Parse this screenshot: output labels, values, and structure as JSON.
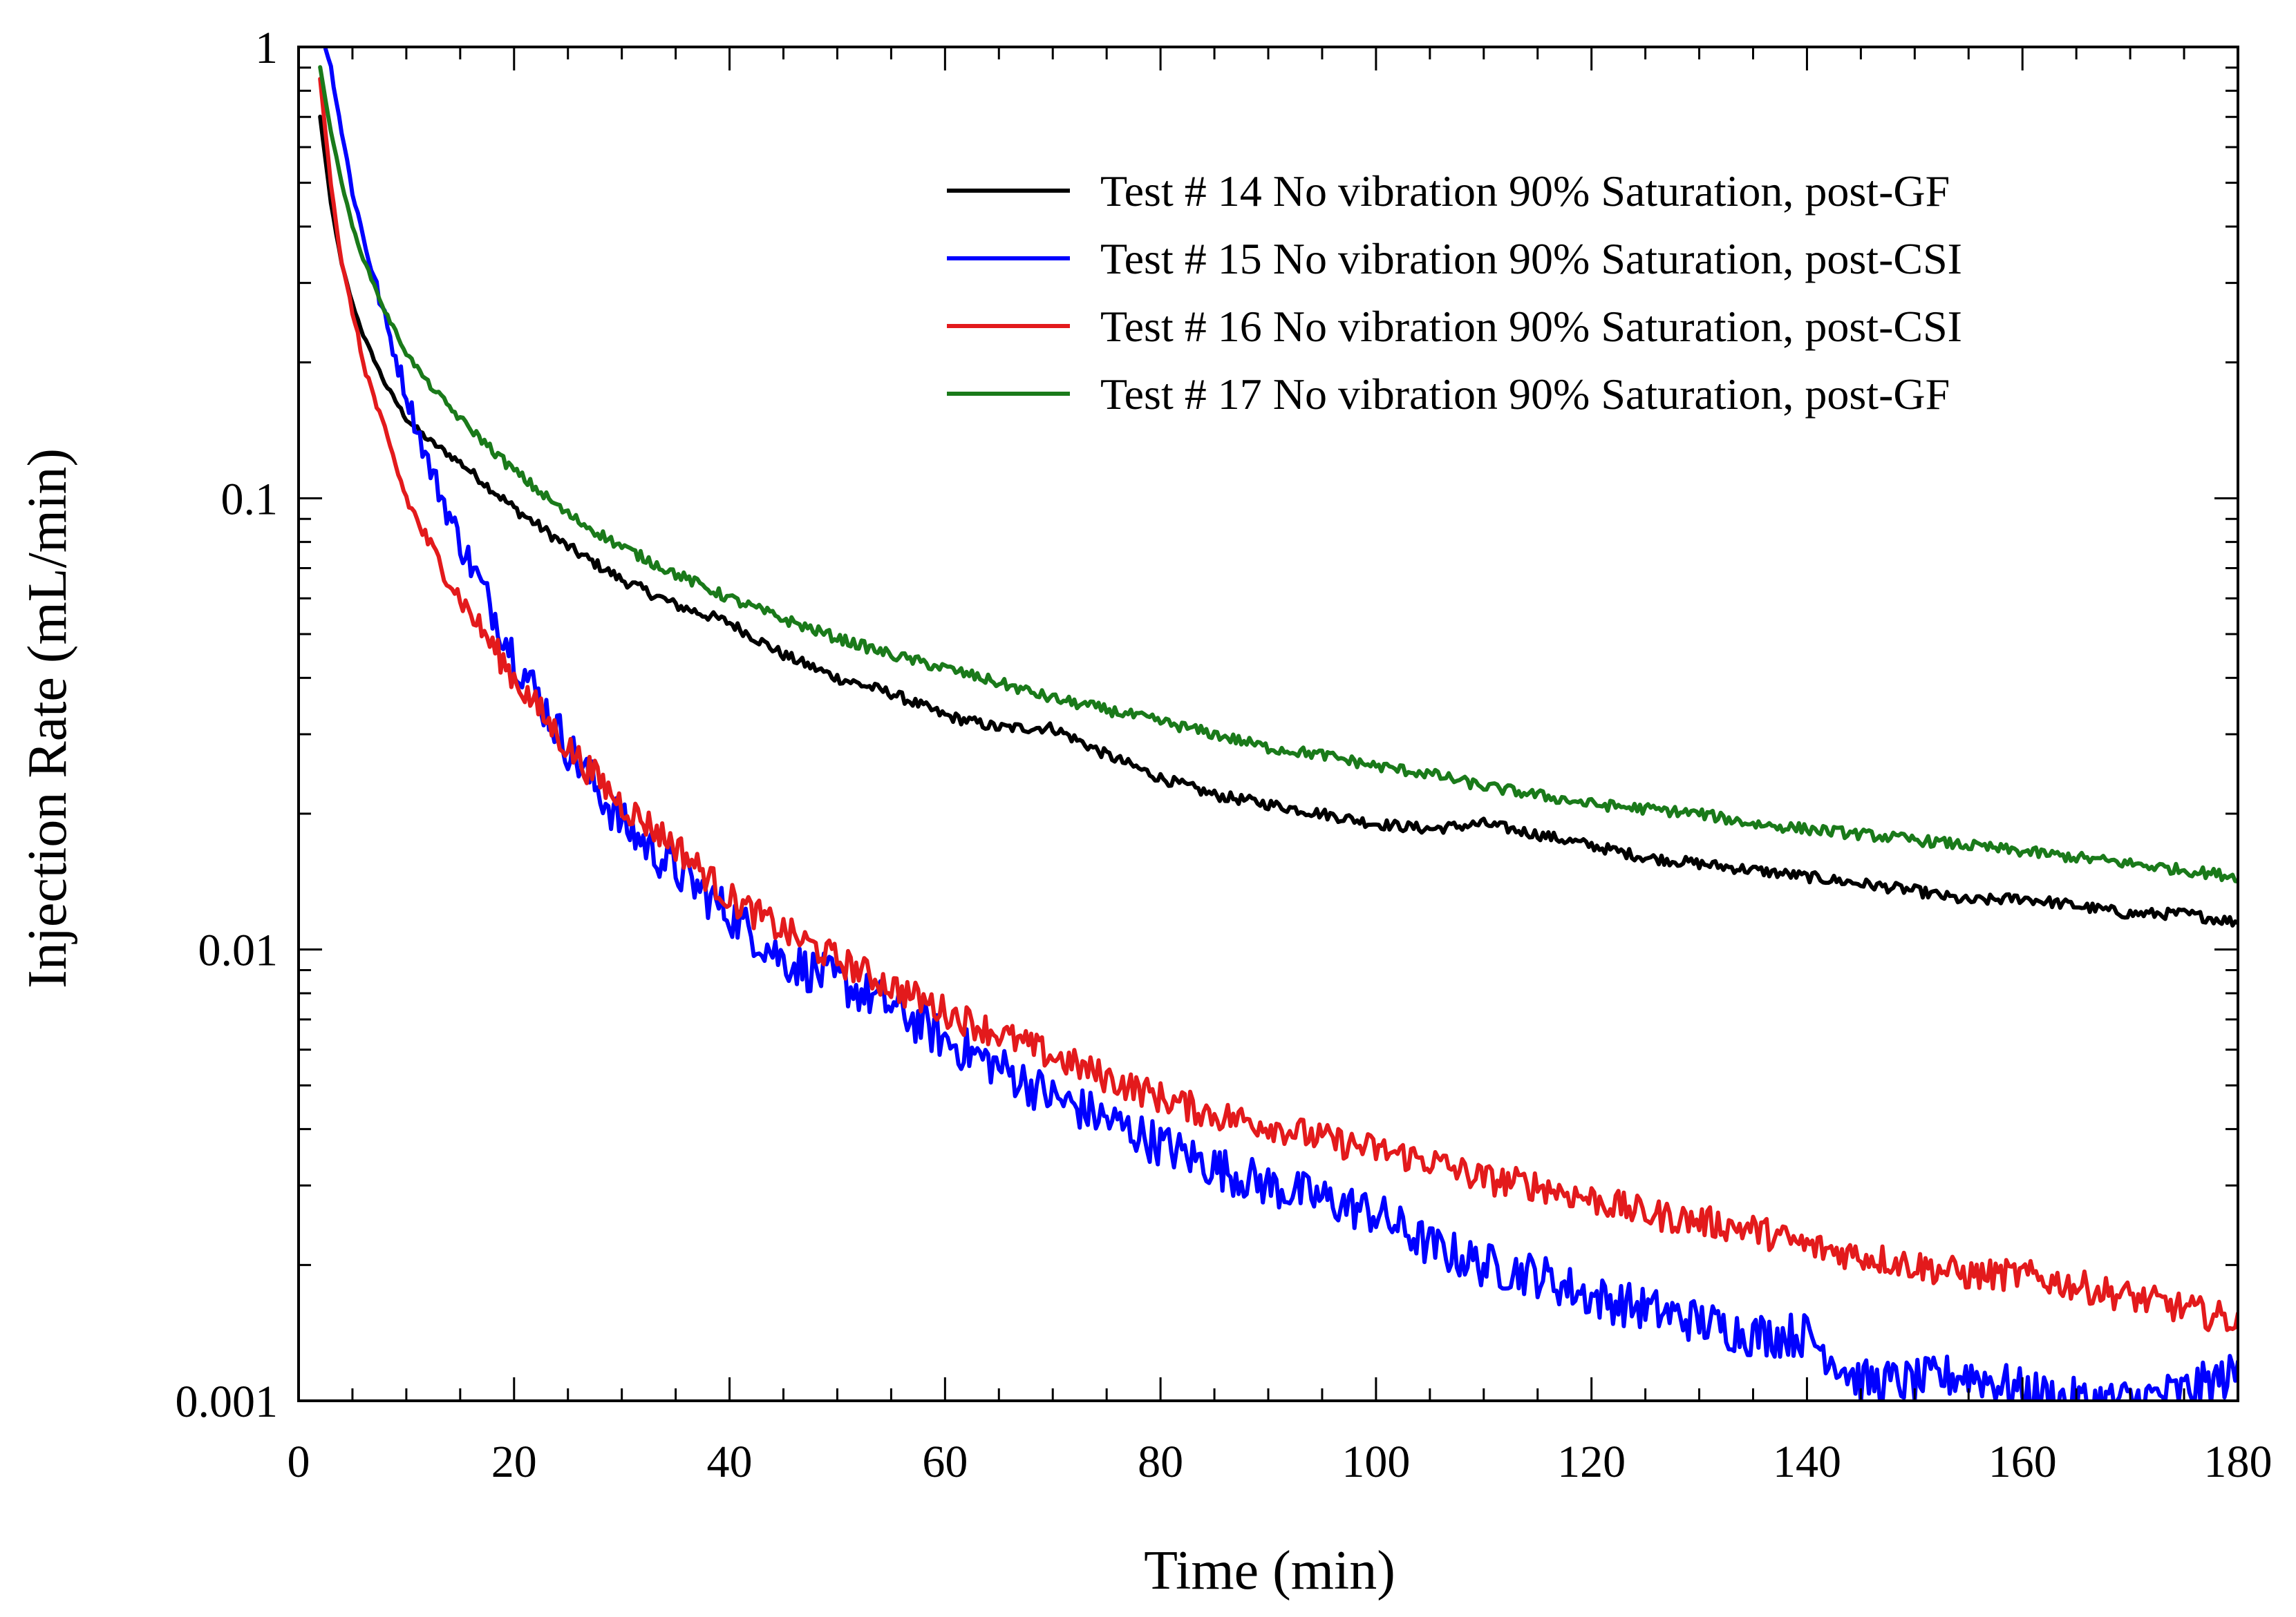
{
  "chart_data": {
    "type": "line",
    "title": "",
    "xlabel": "Time (min)",
    "ylabel": "Injection Rate (mL/min)",
    "x_scale": "linear",
    "y_scale": "log",
    "xlim": [
      0,
      180
    ],
    "ylim": [
      0.001,
      1
    ],
    "x_ticks": [
      0,
      20,
      40,
      60,
      80,
      100,
      120,
      140,
      160,
      180
    ],
    "x_tick_labels": [
      "0",
      "20",
      "40",
      "60",
      "80",
      "100",
      "120",
      "140",
      "160",
      "180"
    ],
    "y_ticks": [
      0.001,
      0.01,
      0.1,
      1
    ],
    "y_tick_labels": [
      "0.001",
      "0.01",
      "0.1",
      "1"
    ],
    "grid": false,
    "legend_position": "top-right",
    "series": [
      {
        "name": "Test # 14 No vibration 90% Saturation, post-GF",
        "color": "#000000",
        "x": [
          2,
          3,
          4,
          5,
          6,
          8,
          10,
          12,
          15,
          20,
          25,
          30,
          35,
          40,
          45,
          50,
          55,
          60,
          65,
          70,
          75,
          80,
          85,
          90,
          95,
          100,
          105,
          110,
          115,
          120,
          125,
          130,
          135,
          140,
          145,
          150,
          155,
          160,
          165,
          170,
          175,
          180
        ],
        "y": [
          0.7,
          0.45,
          0.33,
          0.27,
          0.23,
          0.18,
          0.15,
          0.135,
          0.12,
          0.095,
          0.078,
          0.066,
          0.058,
          0.053,
          0.045,
          0.04,
          0.037,
          0.033,
          0.031,
          0.031,
          0.027,
          0.024,
          0.022,
          0.021,
          0.02,
          0.019,
          0.0185,
          0.019,
          0.018,
          0.017,
          0.016,
          0.0155,
          0.015,
          0.0145,
          0.014,
          0.0135,
          0.0128,
          0.013,
          0.0125,
          0.012,
          0.012,
          0.0115
        ]
      },
      {
        "name": "Test # 15 No vibration 90% Saturation, post-CSI",
        "color": "#0000ff",
        "x": [
          2.5,
          3,
          4,
          5,
          6,
          8,
          10,
          12,
          15,
          20,
          25,
          30,
          35,
          40,
          45,
          50,
          55,
          60,
          65,
          70,
          75,
          80,
          85,
          90,
          95,
          100,
          105,
          110,
          115,
          120,
          125,
          130,
          135,
          140,
          145,
          150,
          155,
          160,
          165,
          170,
          175,
          180
        ],
        "y": [
          1.0,
          0.9,
          0.65,
          0.48,
          0.38,
          0.25,
          0.17,
          0.12,
          0.08,
          0.045,
          0.028,
          0.019,
          0.015,
          0.012,
          0.0095,
          0.0085,
          0.0075,
          0.0063,
          0.0055,
          0.0047,
          0.0042,
          0.0037,
          0.0033,
          0.003,
          0.0028,
          0.0026,
          0.0022,
          0.002,
          0.0019,
          0.0017,
          0.0016,
          0.0015,
          0.0014,
          0.0014,
          0.0011,
          0.0011,
          0.00115,
          0.00105,
          0.001,
          0.001,
          0.00105,
          0.00115
        ]
      },
      {
        "name": "Test # 16 No vibration 90% Saturation, post-CSI",
        "color": "#e31a1c",
        "x": [
          2,
          3,
          4,
          5,
          6,
          8,
          10,
          12,
          15,
          20,
          25,
          30,
          35,
          40,
          45,
          50,
          55,
          60,
          65,
          70,
          75,
          80,
          85,
          90,
          95,
          100,
          105,
          110,
          115,
          120,
          125,
          130,
          135,
          140,
          145,
          150,
          155,
          160,
          165,
          170,
          175,
          180
        ],
        "y": [
          0.85,
          0.5,
          0.33,
          0.26,
          0.2,
          0.14,
          0.1,
          0.08,
          0.06,
          0.04,
          0.028,
          0.021,
          0.017,
          0.013,
          0.011,
          0.0095,
          0.0083,
          0.0073,
          0.0065,
          0.0058,
          0.0052,
          0.0047,
          0.0043,
          0.0041,
          0.0038,
          0.0036,
          0.0034,
          0.0031,
          0.003,
          0.0028,
          0.0026,
          0.0025,
          0.0024,
          0.0022,
          0.0021,
          0.002,
          0.0019,
          0.0019,
          0.0018,
          0.0017,
          0.0016,
          0.0015
        ]
      },
      {
        "name": "Test # 17 No vibration 90% Saturation, post-GF",
        "color": "#1a7a1a",
        "x": [
          2,
          3,
          4,
          5,
          6,
          8,
          10,
          12,
          15,
          20,
          25,
          30,
          35,
          40,
          45,
          50,
          55,
          60,
          65,
          70,
          75,
          80,
          85,
          90,
          95,
          100,
          105,
          110,
          115,
          120,
          125,
          130,
          135,
          140,
          145,
          150,
          155,
          160,
          165,
          170,
          175,
          180
        ],
        "y": [
          0.9,
          0.65,
          0.5,
          0.4,
          0.34,
          0.26,
          0.21,
          0.18,
          0.15,
          0.115,
          0.092,
          0.078,
          0.068,
          0.06,
          0.054,
          0.049,
          0.045,
          0.042,
          0.039,
          0.036,
          0.034,
          0.032,
          0.03,
          0.028,
          0.027,
          0.0255,
          0.0245,
          0.023,
          0.022,
          0.021,
          0.0205,
          0.02,
          0.019,
          0.0185,
          0.018,
          0.0175,
          0.017,
          0.0165,
          0.016,
          0.0155,
          0.015,
          0.0145
        ]
      }
    ]
  }
}
